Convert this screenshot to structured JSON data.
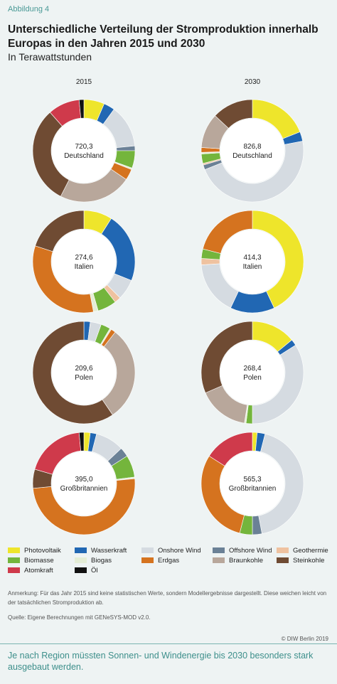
{
  "figure_label": "Abbildung 4",
  "title": "Unterschiedliche Verteilung der Stromproduktion innerhalb Europas in den Jahren 2015 und 2030",
  "subtitle": "In Terawattstunden",
  "columns": [
    "2015",
    "2030"
  ],
  "legend": [
    {
      "name": "Photovoltaik",
      "color": "#eee52b"
    },
    {
      "name": "Wasserkraft",
      "color": "#2167b3"
    },
    {
      "name": "Onshore Wind",
      "color": "#d5dbe1"
    },
    {
      "name": "Offshore Wind",
      "color": "#6b8196"
    },
    {
      "name": "Geothermie",
      "color": "#efc2a0"
    },
    {
      "name": "Biomasse",
      "color": "#74b53c"
    },
    {
      "name": "Biogas",
      "color": "#e4edd6"
    },
    {
      "name": "Erdgas",
      "color": "#d5731f"
    },
    {
      "name": "Braunkohle",
      "color": "#b8a79b"
    },
    {
      "name": "Steinkohle",
      "color": "#6f4b33"
    },
    {
      "name": "Atomkraft",
      "color": "#cf3a4b"
    },
    {
      "name": "Öl",
      "color": "#111111"
    }
  ],
  "chart_data": {
    "type": "pie",
    "variant": "donut",
    "categories": [
      "Photovoltaik",
      "Wasserkraft",
      "Onshore Wind",
      "Offshore Wind",
      "Geothermie",
      "Biomasse",
      "Biogas",
      "Erdgas",
      "Braunkohle",
      "Steinkohle",
      "Atomkraft",
      "Öl"
    ],
    "charts": [
      {
        "country": "Deutschland",
        "year": "2015",
        "total_label": "720,3",
        "values": [
          6.5,
          3.5,
          13.5,
          1.5,
          0,
          5.5,
          0.5,
          3.5,
          23,
          31,
          10,
          1.5
        ]
      },
      {
        "country": "Deutschland",
        "year": "2030",
        "total_label": "826,8",
        "values": [
          19,
          3,
          47,
          1.5,
          0.5,
          3,
          0.5,
          1.5,
          11,
          13,
          0,
          0
        ]
      },
      {
        "country": "Italien",
        "year": "2015",
        "total_label": "274,6",
        "values": [
          9,
          22,
          6.5,
          0,
          2,
          6,
          1.5,
          33,
          0,
          20,
          0,
          0
        ]
      },
      {
        "country": "Italien",
        "year": "2030",
        "total_label": "414,3",
        "values": [
          43,
          14,
          17,
          0,
          2,
          3,
          0,
          21,
          0,
          0,
          0,
          0
        ]
      },
      {
        "country": "Polen",
        "year": "2015",
        "total_label": "209,6",
        "values": [
          0,
          2,
          3.5,
          0,
          0,
          3,
          0.5,
          1.5,
          30,
          59.5,
          0,
          0
        ]
      },
      {
        "country": "Polen",
        "year": "2030",
        "total_label": "268,4",
        "values": [
          14,
          2,
          34,
          0,
          0,
          2,
          0.5,
          0,
          16,
          31.5,
          0,
          0
        ]
      },
      {
        "country": "Großbritannien",
        "year": "2015",
        "total_label": "395,0",
        "values": [
          2,
          2,
          9,
          3,
          0,
          7,
          0.5,
          50,
          0,
          6,
          19,
          1.5
        ]
      },
      {
        "country": "Großbritannien",
        "year": "2030",
        "total_label": "565,3",
        "values": [
          1.5,
          2.5,
          43,
          3,
          0,
          4,
          0,
          30,
          0,
          0,
          16,
          0
        ]
      }
    ]
  },
  "note": "Anmerkung: Für das Jahr 2015 sind keine statistischen Werte, sondern Modellergebnisse dargestellt. Diese weichen leicht von der tatsächlichen Stromproduktion ab.",
  "source": "Quelle: Eigene Berechnungen mit GENeSYS-MOD v2.0.",
  "copyright": "© DIW Berlin 2019",
  "footer": "Je nach Region müssten Sonnen- und Windenergie bis 2030 besonders stark ausgebaut werden."
}
